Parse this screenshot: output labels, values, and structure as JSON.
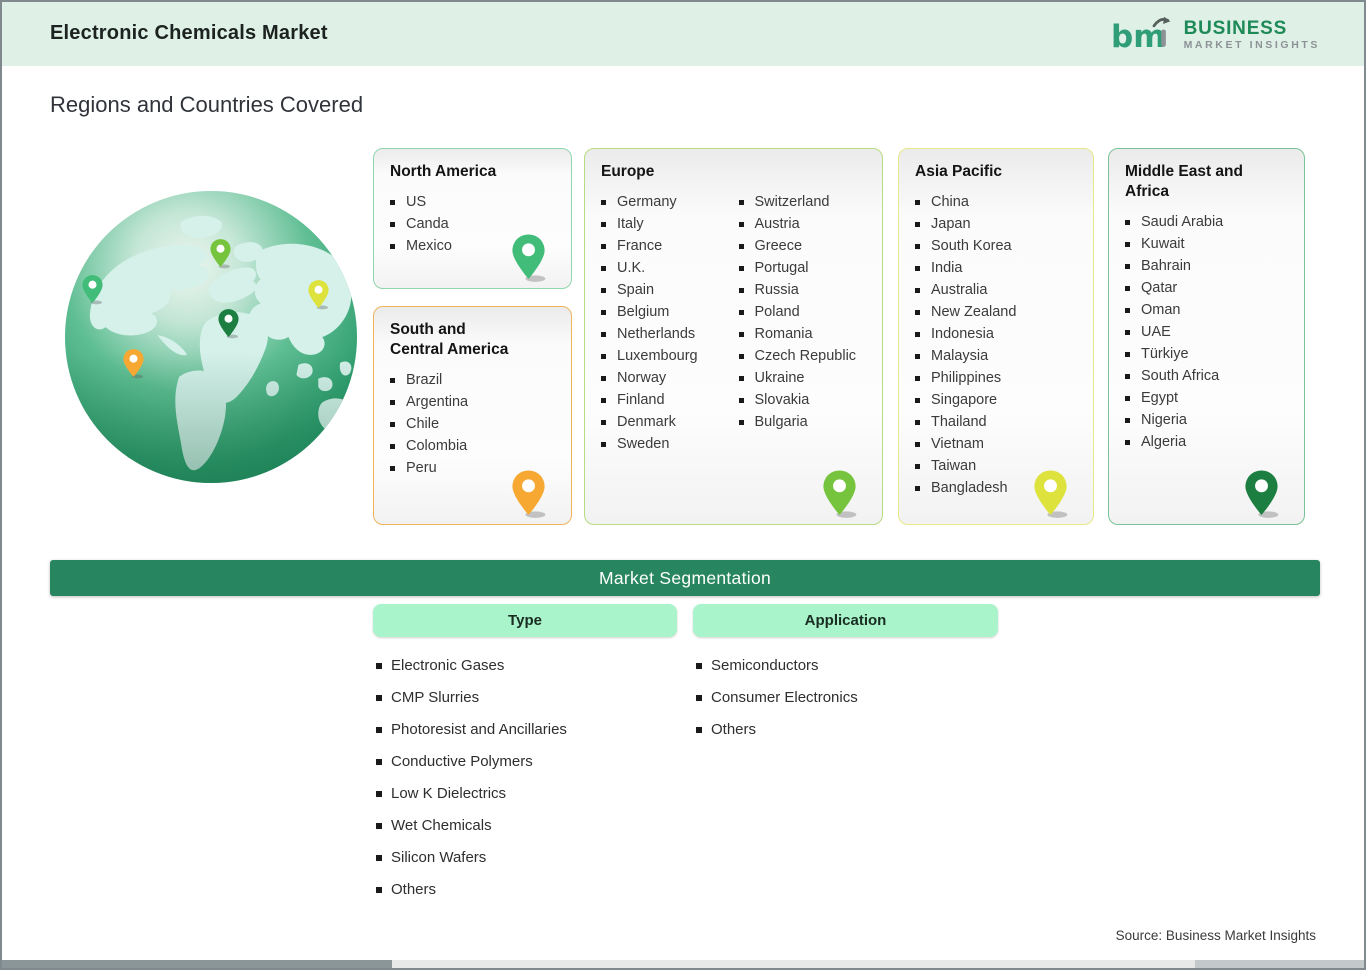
{
  "header": {
    "title": "Electronic Chemicals Market",
    "logo": {
      "line1": "BUSINESS",
      "line2": "MARKET INSIGHTS"
    }
  },
  "page": {
    "section_title": "Regions and Countries Covered",
    "source": "Source: Business Market Insights"
  },
  "colors": {
    "header_bg": "#dff0e7",
    "seg_bar_bg": "#27865f",
    "col_header_bg": "#a9f4cb",
    "logo_green": "#2f9e78",
    "logo_gray": "#8d9296"
  },
  "regions": {
    "north_america": {
      "title": "North America",
      "border_color": "#8fd8ae",
      "pin_color": "#41bd79",
      "countries": [
        "US",
        "Canda",
        "Mexico"
      ]
    },
    "south_central_america": {
      "title": "South and Central America",
      "border_color": "#f0b45c",
      "pin_color": "#f6a832",
      "countries": [
        "Brazil",
        "Argentina",
        "Chile",
        "Colombia",
        "Peru"
      ]
    },
    "europe": {
      "title": "Europe",
      "border_color": "#b7dc81",
      "pin_color": "#76c43e",
      "countries_col1": [
        "Germany",
        "Italy",
        "France",
        "U.K.",
        "Spain",
        "Belgium",
        "Netherlands",
        "Luxembourg",
        "Norway",
        "Finland",
        "Denmark",
        "Sweden"
      ],
      "countries_col2": [
        "Switzerland",
        "Austria",
        "Greece",
        "Portugal",
        "Russia",
        "Poland",
        "Romania",
        "Czech Republic",
        "Ukraine",
        "Slovakia",
        "Bulgaria"
      ]
    },
    "asia_pacific": {
      "title": "Asia Pacific",
      "border_color": "#e6e987",
      "pin_color": "#dde23c",
      "countries": [
        "China",
        "Japan",
        "South Korea",
        "India",
        "Australia",
        "New Zealand",
        "Indonesia",
        "Malaysia",
        "Philippines",
        "Singapore",
        "Thailand",
        "Vietnam",
        "Taiwan",
        "Bangladesh"
      ]
    },
    "middle_east_africa": {
      "title": "Middle East and Africa",
      "border_color": "#79c497",
      "pin_color": "#1c7f41",
      "countries": [
        "Saudi Arabia",
        "Kuwait",
        "Bahrain",
        "Qatar",
        "Oman",
        "UAE",
        "Türkiye",
        "South Africa",
        "Egypt",
        "Nigeria",
        "Algeria"
      ]
    }
  },
  "segmentation": {
    "title": "Market Segmentation",
    "columns": [
      {
        "label": "Type",
        "items": [
          "Electronic Gases",
          "CMP Slurries",
          "Photoresist and Ancillaries",
          "Conductive Polymers",
          "Low K Dielectrics",
          "Wet Chemicals",
          "Silicon Wafers",
          "Others"
        ]
      },
      {
        "label": "Application",
        "items": [
          "Semiconductors",
          "Consumer Electronics",
          "Others"
        ]
      }
    ]
  }
}
